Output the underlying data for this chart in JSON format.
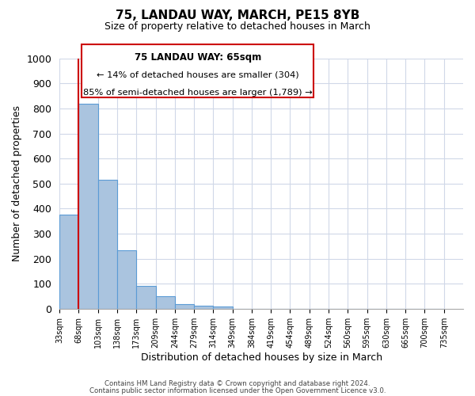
{
  "title": "75, LANDAU WAY, MARCH, PE15 8YB",
  "subtitle": "Size of property relative to detached houses in March",
  "xlabel": "Distribution of detached houses by size in March",
  "ylabel": "Number of detached properties",
  "bin_labels": [
    "33sqm",
    "68sqm",
    "103sqm",
    "138sqm",
    "173sqm",
    "209sqm",
    "244sqm",
    "279sqm",
    "314sqm",
    "349sqm",
    "384sqm",
    "419sqm",
    "454sqm",
    "489sqm",
    "524sqm",
    "560sqm",
    "595sqm",
    "630sqm",
    "665sqm",
    "700sqm",
    "735sqm"
  ],
  "bar_values": [
    375,
    820,
    515,
    235,
    92,
    50,
    20,
    12,
    8,
    0,
    0,
    0,
    0,
    0,
    0,
    0,
    0,
    0,
    0,
    0
  ],
  "bar_color": "#aac4df",
  "bar_edge_color": "#5b9bd5",
  "ylim": [
    0,
    1000
  ],
  "yticks": [
    0,
    100,
    200,
    300,
    400,
    500,
    600,
    700,
    800,
    900,
    1000
  ],
  "property_line_x": 1,
  "annotation_title": "75 LANDAU WAY: 65sqm",
  "annotation_line1": "← 14% of detached houses are smaller (304)",
  "annotation_line2": "85% of semi-detached houses are larger (1,789) →",
  "annotation_box_color": "#ffffff",
  "annotation_box_edge": "#cc0000",
  "red_line_color": "#cc0000",
  "footer1": "Contains HM Land Registry data © Crown copyright and database right 2024.",
  "footer2": "Contains public sector information licensed under the Open Government Licence v3.0.",
  "background_color": "#ffffff",
  "grid_color": "#d0d8e8"
}
